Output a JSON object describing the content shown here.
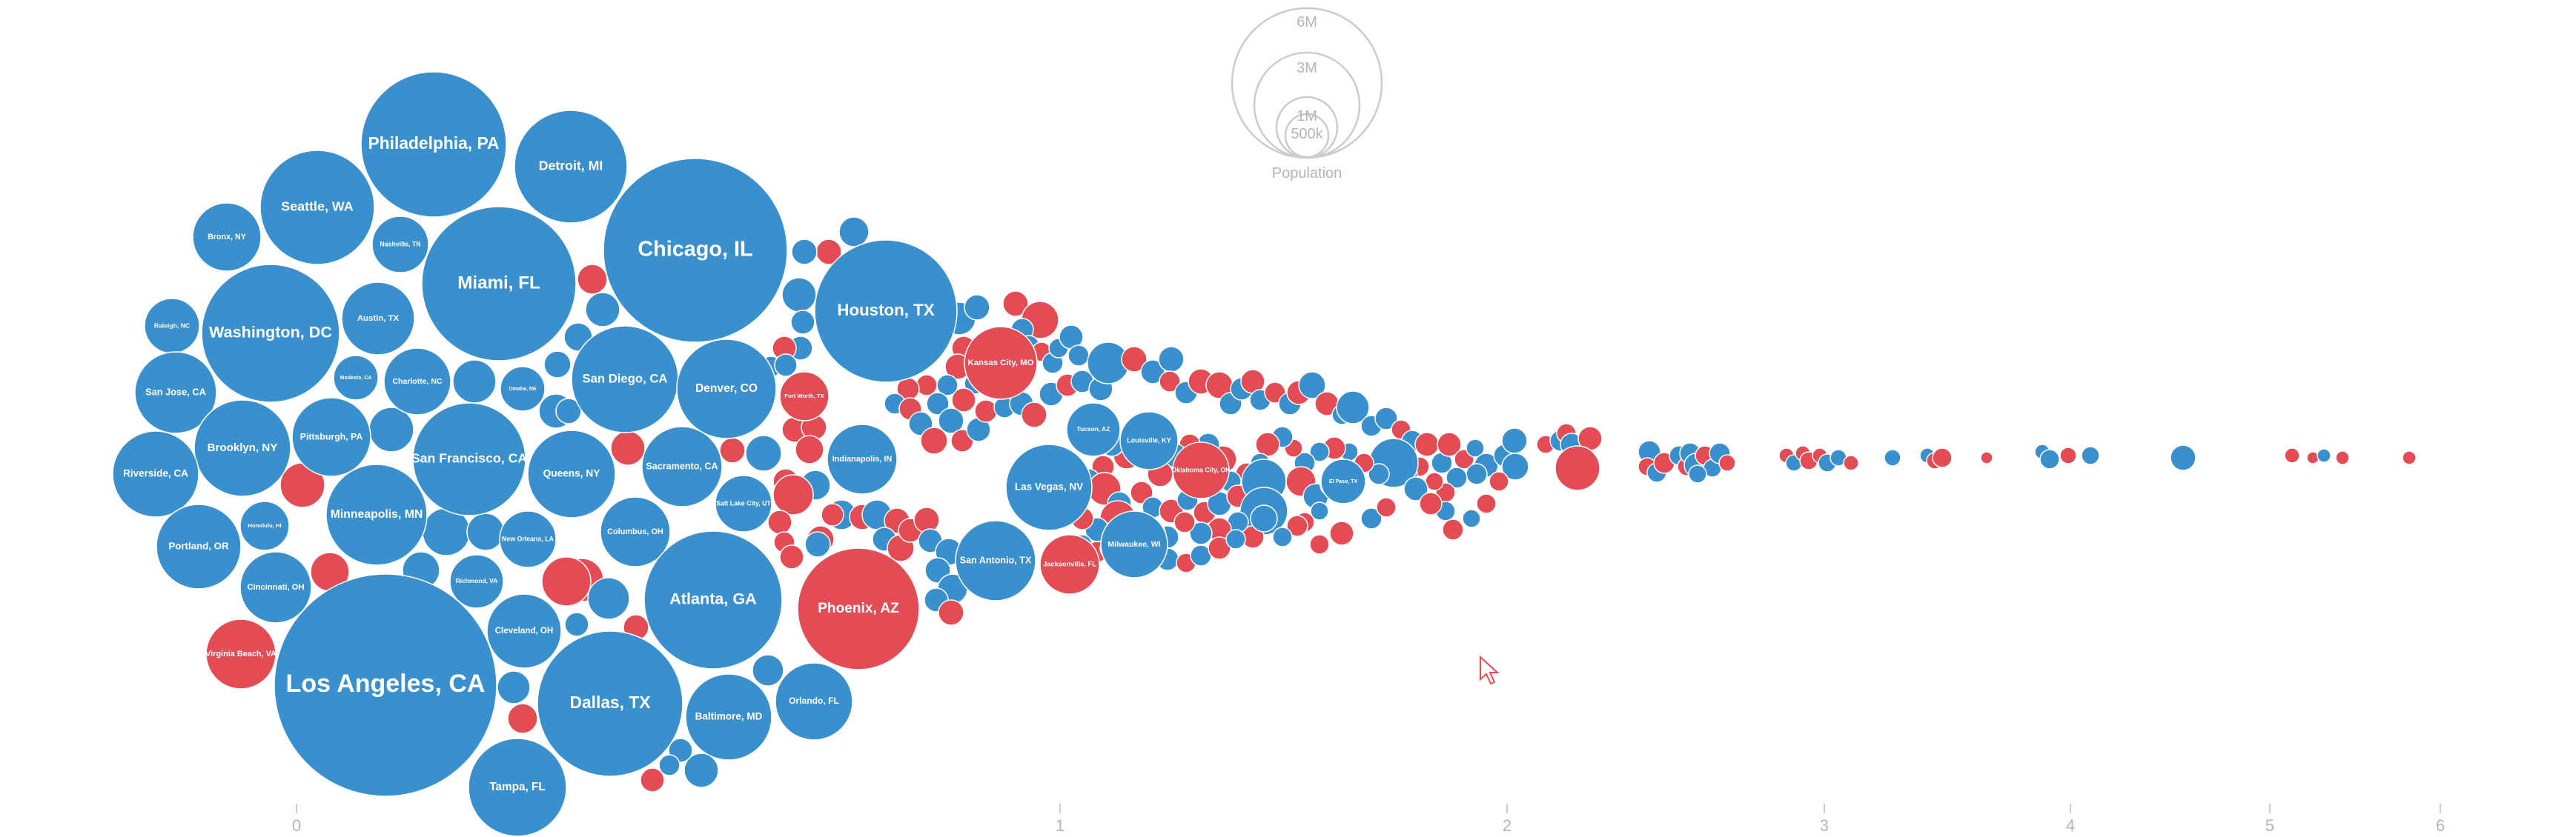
{
  "colors": {
    "blue": "#3a8fcd",
    "red": "#e34b55",
    "axis": "#b5b5b5",
    "legend": "#cccccc"
  },
  "chart_data": {
    "type": "bubble-beeswarm",
    "title": "",
    "xlabel": "",
    "ylabel": "",
    "x_ticks": [
      "0",
      "1",
      "2",
      "3",
      "4",
      "5",
      "6"
    ],
    "size_legend": {
      "title": "Population",
      "levels": [
        {
          "label": "6M",
          "value": 6000000
        },
        {
          "label": "3M",
          "value": 3000000
        },
        {
          "label": "1M",
          "value": 1000000
        },
        {
          "label": "500k",
          "value": 500000
        }
      ]
    },
    "groups": [
      {
        "name": "blue",
        "color": "#3a8fcd"
      },
      {
        "name": "red",
        "color": "#e34b55"
      }
    ],
    "labeled_points": [
      {
        "label": "Philadelphia, PA",
        "tick": 0.18,
        "group": "blue",
        "population": 1550000
      },
      {
        "label": "Detroit, MI",
        "tick": 0.35,
        "group": "blue",
        "population": 700000
      },
      {
        "label": "Seattle, WA",
        "tick": 0.02,
        "group": "blue",
        "population": 720000
      },
      {
        "label": "Bronx, NY",
        "tick": -0.09,
        "group": "blue",
        "population": 280000
      },
      {
        "label": "Nashville, TN",
        "tick": 0.13,
        "group": "blue",
        "population": 190000
      },
      {
        "label": "Chicago, IL",
        "tick": 0.52,
        "group": "blue",
        "population": 2700000
      },
      {
        "label": "Miami, FL",
        "tick": 0.27,
        "group": "blue",
        "population": 1700000
      },
      {
        "label": "Houston, TX",
        "tick": 0.78,
        "group": "blue",
        "population": 1450000
      },
      {
        "label": "Raleigh, NC",
        "tick": -0.17,
        "group": "blue",
        "population": 170000
      },
      {
        "label": "Washington, DC",
        "tick": -0.03,
        "group": "blue",
        "population": 1400000
      },
      {
        "label": "Austin, TX",
        "tick": 0.12,
        "group": "blue",
        "population": 380000
      },
      {
        "label": "Kansas City, MO",
        "tick": 0.9,
        "group": "red",
        "population": 380000
      },
      {
        "label": "San Jose, CA",
        "tick": -0.16,
        "group": "blue",
        "population": 420000
      },
      {
        "label": "Modesto, CA",
        "tick": 0.08,
        "group": "blue",
        "population": 150000
      },
      {
        "label": "Charlotte, NC",
        "tick": 0.16,
        "group": "blue",
        "population": 300000
      },
      {
        "label": "San Diego, CA",
        "tick": 0.44,
        "group": "blue",
        "population": 900000
      },
      {
        "label": "Omaha, NE",
        "tick": 0.31,
        "group": "blue",
        "population": 170000
      },
      {
        "label": "Denver, CO",
        "tick": 0.56,
        "group": "blue",
        "population": 700000
      },
      {
        "label": "Fort Worth, TX",
        "tick": 0.65,
        "group": "red",
        "population": 200000
      },
      {
        "label": "Tucson, AZ",
        "tick": 1.02,
        "group": "blue",
        "population": 210000
      },
      {
        "label": "Louisville, KY",
        "tick": 1.14,
        "group": "blue",
        "population": 220000
      },
      {
        "label": "Brooklyn, NY",
        "tick": -0.08,
        "group": "blue",
        "population": 650000
      },
      {
        "label": "Pittsburgh, PA",
        "tick": 0.05,
        "group": "blue",
        "population": 340000
      },
      {
        "label": "San Francisco, CA",
        "tick": 0.23,
        "group": "blue",
        "population": 960000
      },
      {
        "label": "Sacramento, CA",
        "tick": 0.45,
        "group": "blue",
        "population": 450000
      },
      {
        "label": "Indianapolis, IN",
        "tick": 0.72,
        "group": "blue",
        "population": 400000
      },
      {
        "label": "Oklahoma City, OK",
        "tick": 1.17,
        "group": "red",
        "population": 220000
      },
      {
        "label": "Riverside, CA",
        "tick": -0.19,
        "group": "blue",
        "population": 500000
      },
      {
        "label": "Queens, NY",
        "tick": 0.35,
        "group": "blue",
        "population": 600000
      },
      {
        "label": "Las Vegas, NV",
        "tick": 0.99,
        "group": "blue",
        "population": 520000
      },
      {
        "label": "El Paso, TX",
        "tick": 1.35,
        "group": "blue",
        "population": 170000
      },
      {
        "label": "Honolulu, HI",
        "tick": -0.04,
        "group": "blue",
        "population": 140000
      },
      {
        "label": "Minneapolis, MN",
        "tick": 0.09,
        "group": "blue",
        "population": 700000
      },
      {
        "label": "Salt Lake City, UT",
        "tick": 0.54,
        "group": "blue",
        "population": 260000
      },
      {
        "label": "Columbus, OH",
        "tick": 0.44,
        "group": "blue",
        "population": 400000
      },
      {
        "label": "New Orleans, LA",
        "tick": 0.29,
        "group": "blue",
        "population": 260000
      },
      {
        "label": "Portland, OR",
        "tick": -0.13,
        "group": "blue",
        "population": 510000
      },
      {
        "label": "Milwaukee, WI",
        "tick": 1.08,
        "group": "blue",
        "population": 330000
      },
      {
        "label": "San Antonio, TX",
        "tick": 0.85,
        "group": "blue",
        "population": 460000
      },
      {
        "label": "Jacksonville, FL",
        "tick": 1.02,
        "group": "red",
        "population": 250000
      },
      {
        "label": "Cincinnati, OH",
        "tick": -0.05,
        "group": "blue",
        "population": 360000
      },
      {
        "label": "Richmond, VA",
        "tick": 0.21,
        "group": "blue",
        "population": 200000
      },
      {
        "label": "Atlanta, GA",
        "tick": 0.52,
        "group": "blue",
        "population": 1200000
      },
      {
        "label": "Phoenix, AZ",
        "tick": 0.74,
        "group": "red",
        "population": 1050000
      },
      {
        "label": "Cleveland, OH",
        "tick": 0.3,
        "group": "blue",
        "population": 380000
      },
      {
        "label": "Virginia Beach, VA",
        "tick": -0.12,
        "group": "red",
        "population": 300000
      },
      {
        "label": "Los Angeles, CA",
        "tick": 0.09,
        "group": "blue",
        "population": 3900000
      },
      {
        "label": "Dallas, TX",
        "tick": 0.39,
        "group": "blue",
        "population": 1300000
      },
      {
        "label": "Baltimore, MD",
        "tick": 0.56,
        "group": "blue",
        "population": 470000
      },
      {
        "label": "Orlando, FL",
        "tick": 0.68,
        "group": "blue",
        "population": 390000
      },
      {
        "label": "Tampa, FL",
        "tick": 0.28,
        "group": "blue",
        "population": 570000
      }
    ]
  }
}
